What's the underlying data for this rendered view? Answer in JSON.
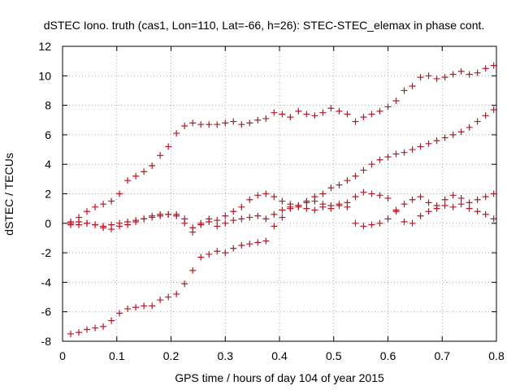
{
  "chart_data": {
    "type": "scatter",
    "title": "dSTEC Iono. truth (cas1, Lon=110, Lat=-66, h=26): STEC-STEC_elemax in phase cont.",
    "xlabel": "GPS time / hours of day 104 of year 2015",
    "ylabel": "dSTEC  / TECUs",
    "xlim": [
      0,
      0.8
    ],
    "ylim": [
      -8,
      12
    ],
    "xticks": [
      0,
      0.1,
      0.2,
      0.3,
      0.4,
      0.5,
      0.6,
      0.7,
      0.8
    ],
    "xtick_labels": [
      "0",
      "0.1",
      "0.2",
      "0.3",
      "0.4",
      "0.5",
      "0.6",
      "0.7",
      "0.8"
    ],
    "yticks": [
      -8,
      -6,
      -4,
      -2,
      0,
      2,
      4,
      6,
      8,
      10,
      12
    ],
    "ytick_labels": [
      "-8",
      "-6",
      "-4",
      "-2",
      "0",
      "2",
      "4",
      "6",
      "8",
      "10",
      "12"
    ],
    "grid": true,
    "legend": "none",
    "marker": "plus",
    "color": "#c8101e",
    "series": [
      {
        "x": [
          0.015,
          0.03,
          0.045,
          0.06,
          0.075,
          0.09,
          0.105,
          0.12,
          0.135,
          0.15,
          0.165,
          0.18,
          0.195,
          0.21,
          0.225,
          0.24,
          0.255,
          0.27,
          0.285,
          0.3,
          0.315,
          0.33,
          0.345,
          0.36,
          0.375,
          0.39,
          0.405,
          0.42,
          0.435,
          0.45,
          0.465,
          0.48,
          0.495,
          0.51,
          0.525,
          0.54,
          0.555,
          0.57,
          0.585,
          0.6,
          0.615,
          0.63,
          0.645,
          0.66,
          0.675,
          0.69,
          0.705,
          0.72,
          0.735,
          0.75,
          0.765,
          0.78,
          0.795
        ],
        "y": [
          0.0,
          0.4,
          0.8,
          1.1,
          1.3,
          1.5,
          2.0,
          2.9,
          3.2,
          3.5,
          3.9,
          4.6,
          5.2,
          6.1,
          6.6,
          6.8,
          6.7,
          6.7,
          6.7,
          6.8,
          6.9,
          6.7,
          6.8,
          7.0,
          7.1,
          7.5,
          7.4,
          7.2,
          7.6,
          7.4,
          7.3,
          7.5,
          7.8,
          7.6,
          7.4,
          6.9,
          7.2,
          7.4,
          7.6,
          7.9,
          8.3,
          9.0,
          9.3,
          9.9,
          10.0,
          9.8,
          9.9,
          10.1,
          10.3,
          10.1,
          10.2,
          10.5,
          10.7
        ]
      },
      {
        "x": [
          0.015,
          0.03,
          0.045,
          0.06,
          0.075,
          0.09,
          0.105,
          0.12,
          0.135,
          0.15,
          0.165,
          0.18,
          0.195,
          0.21,
          0.225,
          0.24,
          0.255,
          0.27,
          0.285,
          0.3,
          0.315,
          0.33,
          0.345,
          0.36,
          0.375,
          0.39,
          0.405,
          0.42,
          0.435,
          0.45,
          0.465,
          0.48,
          0.495,
          0.51,
          0.525,
          0.54,
          0.555,
          0.57,
          0.585,
          0.6,
          0.615,
          0.63,
          0.645,
          0.66,
          0.675,
          0.69,
          0.705,
          0.72,
          0.735,
          0.75,
          0.765,
          0.78,
          0.795
        ],
        "y": [
          -0.1,
          0.1,
          0.0,
          -0.1,
          -0.2,
          -0.1,
          0.0,
          0.1,
          0.2,
          0.3,
          0.5,
          0.6,
          0.6,
          0.6,
          0.3,
          -0.3,
          -0.1,
          0.1,
          -0.2,
          0.0,
          0.2,
          0.3,
          0.4,
          0.5,
          0.3,
          0.6,
          0.9,
          1.1,
          1.2,
          1.5,
          1.8,
          2.0,
          2.4,
          2.6,
          2.9,
          3.2,
          3.6,
          4.0,
          4.3,
          4.5,
          4.7,
          4.8,
          5.0,
          5.2,
          5.4,
          5.6,
          5.8,
          6.0,
          6.2,
          6.5,
          6.9,
          7.3,
          7.7
        ]
      },
      {
        "x": [
          0.015,
          0.03,
          0.045,
          0.06,
          0.075,
          0.09,
          0.105,
          0.12,
          0.135,
          0.15,
          0.165,
          0.18,
          0.195,
          0.21,
          0.225,
          0.24,
          0.255,
          0.27,
          0.285,
          0.3,
          0.315,
          0.33,
          0.345,
          0.36,
          0.375,
          0.39,
          0.405,
          0.42,
          0.435,
          0.45,
          0.465,
          0.48,
          0.495,
          0.51,
          0.525,
          0.54,
          0.555,
          0.57,
          0.585,
          0.6,
          0.615,
          0.63,
          0.645,
          0.66,
          0.675,
          0.69,
          0.705,
          0.72,
          0.735,
          0.75,
          0.765,
          0.78,
          0.795
        ],
        "y": [
          -7.5,
          -7.4,
          -7.2,
          -7.1,
          -7.0,
          -6.6,
          -6.1,
          -5.8,
          -5.7,
          -5.6,
          -5.6,
          -5.2,
          -5.0,
          -4.8,
          -4.1,
          -3.2,
          -2.3,
          -2.1,
          -1.9,
          -2.0,
          -1.7,
          -1.5,
          -1.4,
          -1.3,
          -1.2,
          -0.2,
          0.4,
          1.0,
          1.2,
          1.4,
          1.5,
          1.3,
          1.2,
          1.3,
          1.4,
          1.8,
          2.1,
          2.0,
          1.9,
          1.7,
          0.9,
          0.1,
          0.0,
          0.5,
          0.8,
          1.0,
          1.2,
          1.1,
          1.3,
          1.0,
          0.8,
          0.6,
          0.3
        ]
      },
      {
        "x": [
          0.015,
          0.03,
          0.045,
          0.06,
          0.075,
          0.09,
          0.105,
          0.12,
          0.135,
          0.15,
          0.165,
          0.18,
          0.195,
          0.21,
          0.225,
          0.24,
          0.255,
          0.27,
          0.285,
          0.3,
          0.315,
          0.33,
          0.345,
          0.36,
          0.375,
          0.39,
          0.405,
          0.42,
          0.435,
          0.45,
          0.465,
          0.48,
          0.495,
          0.51,
          0.525,
          0.54,
          0.555,
          0.57,
          0.585,
          0.6,
          0.615,
          0.63,
          0.645,
          0.66,
          0.675,
          0.69,
          0.705,
          0.72,
          0.735,
          0.75,
          0.765,
          0.78,
          0.795
        ],
        "y": [
          0.1,
          -0.1,
          0.0,
          -0.1,
          -0.3,
          -0.4,
          -0.2,
          -0.1,
          0.1,
          0.3,
          0.4,
          0.5,
          0.6,
          0.5,
          0.0,
          -0.6,
          0.0,
          0.3,
          0.2,
          0.5,
          0.8,
          1.1,
          1.6,
          1.9,
          2.0,
          1.8,
          1.5,
          1.3,
          1.1,
          1.0,
          0.9,
          1.1,
          1.0,
          1.2,
          1.1,
          0.0,
          -0.2,
          -0.1,
          0.0,
          0.3,
          0.8,
          1.3,
          1.6,
          1.8,
          1.4,
          1.2,
          1.6,
          1.9,
          1.7,
          1.4,
          1.6,
          1.8,
          2.0
        ]
      }
    ]
  }
}
